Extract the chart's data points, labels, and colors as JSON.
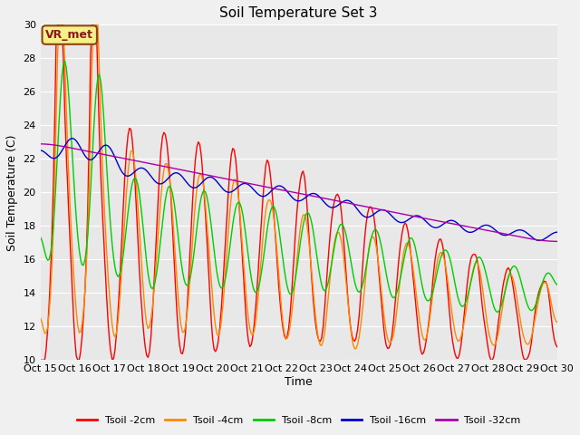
{
  "title": "Soil Temperature Set 3",
  "xlabel": "Time",
  "ylabel": "Soil Temperature (C)",
  "ylim": [
    10,
    30
  ],
  "xlim": [
    0,
    360
  ],
  "fig_facecolor": "#f0f0f0",
  "plot_facecolor": "#e8e8e8",
  "legend_label": "VR_met",
  "x_tick_labels": [
    "Oct 15",
    "Oct 16",
    "Oct 17",
    "Oct 18",
    "Oct 19",
    "Oct 20",
    "Oct 21",
    "Oct 22",
    "Oct 23",
    "Oct 24",
    "Oct 25",
    "Oct 26",
    "Oct 27",
    "Oct 28",
    "Oct 29",
    "Oct 30"
  ],
  "x_tick_positions": [
    0,
    24,
    48,
    72,
    96,
    120,
    144,
    168,
    192,
    216,
    240,
    264,
    288,
    312,
    336,
    360
  ],
  "y_tick_labels": [
    "10",
    "12",
    "14",
    "16",
    "18",
    "20",
    "22",
    "24",
    "26",
    "28",
    "30"
  ],
  "y_tick_positions": [
    10,
    12,
    14,
    16,
    18,
    20,
    22,
    24,
    26,
    28,
    30
  ],
  "series_colors": [
    "#ff0000",
    "#ff8800",
    "#00cc00",
    "#0000cc",
    "#aa00aa"
  ],
  "series_labels": [
    "Tsoil -2cm",
    "Tsoil -4cm",
    "Tsoil -8cm",
    "Tsoil -16cm",
    "Tsoil -32cm"
  ],
  "grid_color": "#ffffff",
  "grid_linewidth": 0.8,
  "line_linewidth": 1.0,
  "title_fontsize": 11,
  "axis_label_fontsize": 9,
  "tick_fontsize": 8
}
